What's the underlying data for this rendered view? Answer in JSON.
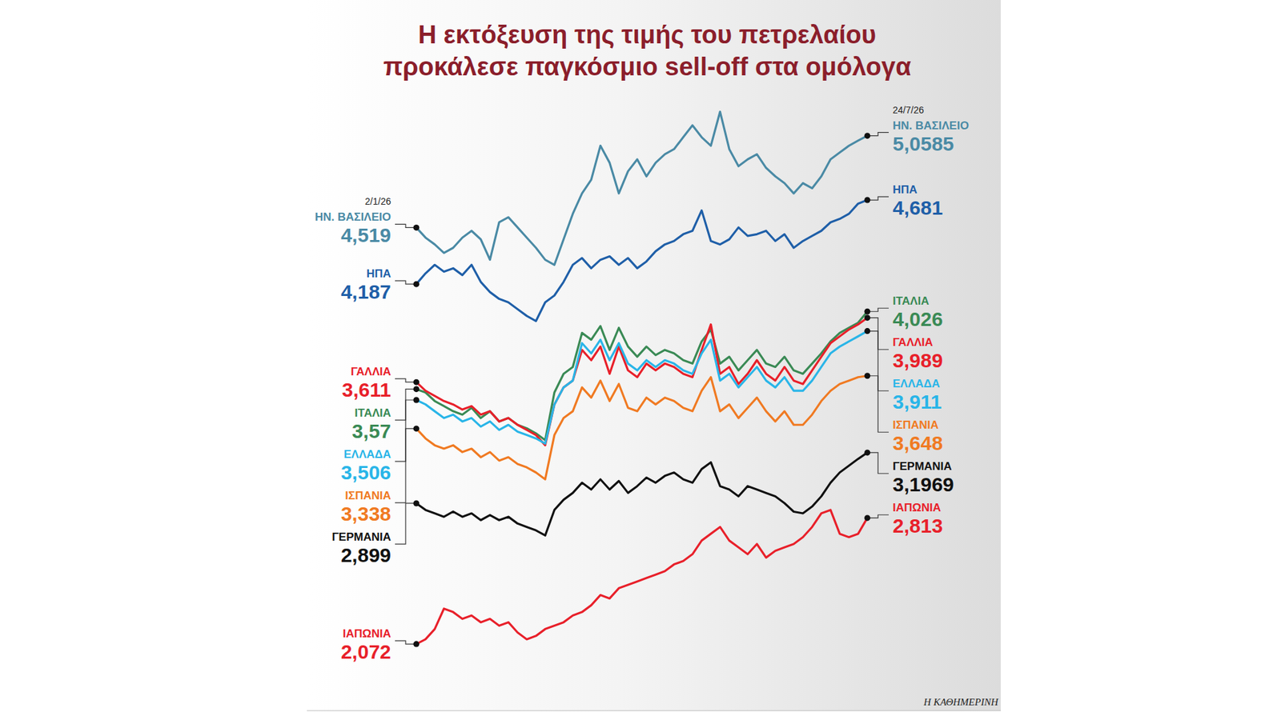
{
  "chart_data": {
    "type": "line",
    "title": "Η εκτόξευση της τιμής του πετρελαίου προκάλεσε παγκόσμιο sell-off στα ομόλογα",
    "source": "Η ΚΑΘΗΜΕΡΙΝΗ",
    "ylim": [
      1.9,
      5.3
    ],
    "tick_labels": false,
    "grid": false,
    "categories": [
      "2/1/26",
      null,
      null,
      null,
      null,
      null,
      null,
      null,
      null,
      null,
      null,
      null,
      null,
      null,
      null,
      null,
      null,
      null,
      null,
      null,
      null,
      null,
      null,
      null,
      null,
      null,
      null,
      null,
      null,
      null,
      null,
      null,
      null,
      null,
      null,
      null,
      null,
      null,
      null,
      null,
      null,
      null,
      null,
      null,
      null,
      null,
      null,
      null,
      null,
      "24/7/26"
    ],
    "series": [
      {
        "name": "ΗΝ. ΒΑΣΙΛΕΙΟ",
        "color": "#4a8aa5",
        "values": [
          4.519,
          4.46,
          4.42,
          4.37,
          4.4,
          4.46,
          4.5,
          4.45,
          4.33,
          4.55,
          4.58,
          4.52,
          4.46,
          4.4,
          4.33,
          4.3,
          4.45,
          4.6,
          4.72,
          4.8,
          5.0,
          4.9,
          4.72,
          4.85,
          4.92,
          4.82,
          4.9,
          4.95,
          4.98,
          5.05,
          5.12,
          5.05,
          5.0,
          5.2,
          4.98,
          4.88,
          4.92,
          4.95,
          4.87,
          4.82,
          4.78,
          4.72,
          4.78,
          4.75,
          4.82,
          4.92,
          4.96,
          5.0,
          5.03,
          5.0585
        ],
        "value_labels": [
          "4,519",
          null,
          null,
          null,
          null,
          null,
          null,
          null,
          null,
          null,
          null,
          null,
          null,
          null,
          null,
          null,
          null,
          null,
          null,
          null,
          null,
          null,
          null,
          null,
          null,
          null,
          null,
          null,
          null,
          null,
          null,
          null,
          null,
          null,
          null,
          null,
          null,
          null,
          null,
          null,
          null,
          null,
          null,
          null,
          null,
          null,
          null,
          null,
          null,
          "5,0585"
        ]
      },
      {
        "name": "ΗΠΑ",
        "color": "#1f5fa8",
        "values": [
          4.187,
          4.25,
          4.3,
          4.26,
          4.28,
          4.24,
          4.3,
          4.2,
          4.14,
          4.1,
          4.08,
          4.04,
          4.0,
          3.97,
          4.08,
          4.12,
          4.2,
          4.3,
          4.34,
          4.28,
          4.33,
          4.35,
          4.3,
          4.34,
          4.28,
          4.32,
          4.38,
          4.42,
          4.44,
          4.48,
          4.5,
          4.62,
          4.44,
          4.42,
          4.45,
          4.52,
          4.47,
          4.48,
          4.5,
          4.44,
          4.48,
          4.4,
          4.44,
          4.47,
          4.5,
          4.55,
          4.57,
          4.6,
          4.66,
          4.681
        ],
        "value_labels": [
          "4,187",
          null,
          null,
          null,
          null,
          null,
          null,
          null,
          null,
          null,
          null,
          null,
          null,
          null,
          null,
          null,
          null,
          null,
          null,
          null,
          null,
          null,
          null,
          null,
          null,
          null,
          null,
          null,
          null,
          null,
          null,
          null,
          null,
          null,
          null,
          null,
          null,
          null,
          null,
          null,
          null,
          null,
          null,
          null,
          null,
          null,
          null,
          null,
          null,
          "4,681"
        ]
      },
      {
        "name": "ΙΤΑΛΙΑ",
        "color": "#3a8a55",
        "values": [
          3.57,
          3.55,
          3.5,
          3.47,
          3.44,
          3.42,
          3.46,
          3.4,
          3.44,
          3.38,
          3.4,
          3.36,
          3.34,
          3.31,
          3.27,
          3.55,
          3.66,
          3.7,
          3.9,
          3.86,
          3.94,
          3.8,
          3.93,
          3.82,
          3.76,
          3.82,
          3.77,
          3.8,
          3.78,
          3.74,
          3.72,
          3.85,
          3.92,
          3.72,
          3.76,
          3.68,
          3.74,
          3.8,
          3.72,
          3.7,
          3.76,
          3.68,
          3.66,
          3.72,
          3.78,
          3.85,
          3.9,
          3.93,
          3.96,
          4.026
        ],
        "value_labels": [
          "3,57",
          null,
          null,
          null,
          null,
          null,
          null,
          null,
          null,
          null,
          null,
          null,
          null,
          null,
          null,
          null,
          null,
          null,
          null,
          null,
          null,
          null,
          null,
          null,
          null,
          null,
          null,
          null,
          null,
          null,
          null,
          null,
          null,
          null,
          null,
          null,
          null,
          null,
          null,
          null,
          null,
          null,
          null,
          null,
          null,
          null,
          null,
          null,
          null,
          "4,026"
        ]
      },
      {
        "name": "ΓΑΛΛΙΑ",
        "color": "#e8202a",
        "values": [
          3.611,
          3.56,
          3.53,
          3.5,
          3.48,
          3.45,
          3.47,
          3.42,
          3.44,
          3.38,
          3.4,
          3.36,
          3.33,
          3.3,
          3.24,
          3.48,
          3.58,
          3.62,
          3.8,
          3.74,
          3.82,
          3.66,
          3.82,
          3.68,
          3.64,
          3.72,
          3.68,
          3.72,
          3.7,
          3.66,
          3.64,
          3.8,
          3.95,
          3.66,
          3.7,
          3.6,
          3.66,
          3.74,
          3.66,
          3.62,
          3.7,
          3.62,
          3.6,
          3.68,
          3.76,
          3.84,
          3.88,
          3.92,
          3.95,
          3.989
        ],
        "value_labels": [
          "3,611",
          null,
          null,
          null,
          null,
          null,
          null,
          null,
          null,
          null,
          null,
          null,
          null,
          null,
          null,
          null,
          null,
          null,
          null,
          null,
          null,
          null,
          null,
          null,
          null,
          null,
          null,
          null,
          null,
          null,
          null,
          null,
          null,
          null,
          null,
          null,
          null,
          null,
          null,
          null,
          null,
          null,
          null,
          null,
          null,
          null,
          null,
          null,
          null,
          "3,989"
        ]
      },
      {
        "name": "ΕΛΛΑΔΑ",
        "color": "#29b5e8",
        "values": [
          3.506,
          3.48,
          3.44,
          3.4,
          3.42,
          3.38,
          3.4,
          3.35,
          3.38,
          3.33,
          3.36,
          3.32,
          3.3,
          3.28,
          3.25,
          3.48,
          3.58,
          3.62,
          3.84,
          3.78,
          3.86,
          3.74,
          3.84,
          3.72,
          3.68,
          3.74,
          3.7,
          3.74,
          3.72,
          3.68,
          3.66,
          3.78,
          3.86,
          3.62,
          3.66,
          3.58,
          3.64,
          3.7,
          3.62,
          3.58,
          3.64,
          3.56,
          3.56,
          3.62,
          3.7,
          3.78,
          3.82,
          3.85,
          3.88,
          3.911
        ],
        "value_labels": [
          "3,506",
          null,
          null,
          null,
          null,
          null,
          null,
          null,
          null,
          null,
          null,
          null,
          null,
          null,
          null,
          null,
          null,
          null,
          null,
          null,
          null,
          null,
          null,
          null,
          null,
          null,
          null,
          null,
          null,
          null,
          null,
          null,
          null,
          null,
          null,
          null,
          null,
          null,
          null,
          null,
          null,
          null,
          null,
          null,
          null,
          null,
          null,
          null,
          null,
          "3,911"
        ]
      },
      {
        "name": "ΙΣΠΑΝΙΑ",
        "color": "#f07a22",
        "values": [
          3.338,
          3.28,
          3.24,
          3.22,
          3.24,
          3.2,
          3.22,
          3.17,
          3.2,
          3.15,
          3.17,
          3.13,
          3.11,
          3.08,
          3.04,
          3.3,
          3.4,
          3.44,
          3.58,
          3.52,
          3.62,
          3.5,
          3.6,
          3.46,
          3.44,
          3.52,
          3.48,
          3.52,
          3.5,
          3.46,
          3.44,
          3.56,
          3.64,
          3.44,
          3.48,
          3.4,
          3.46,
          3.52,
          3.44,
          3.38,
          3.44,
          3.36,
          3.36,
          3.42,
          3.5,
          3.56,
          3.6,
          3.62,
          3.64,
          3.648
        ],
        "value_labels": [
          "3,338",
          null,
          null,
          null,
          null,
          null,
          null,
          null,
          null,
          null,
          null,
          null,
          null,
          null,
          null,
          null,
          null,
          null,
          null,
          null,
          null,
          null,
          null,
          null,
          null,
          null,
          null,
          null,
          null,
          null,
          null,
          null,
          null,
          null,
          null,
          null,
          null,
          null,
          null,
          null,
          null,
          null,
          null,
          null,
          null,
          null,
          null,
          null,
          null,
          "3,648"
        ]
      },
      {
        "name": "ΓΕΡΜΑΝΙΑ",
        "color": "#111111",
        "values": [
          2.899,
          2.86,
          2.84,
          2.82,
          2.85,
          2.82,
          2.84,
          2.8,
          2.83,
          2.8,
          2.82,
          2.78,
          2.76,
          2.74,
          2.71,
          2.86,
          2.92,
          2.96,
          3.02,
          2.98,
          3.04,
          2.98,
          3.03,
          2.96,
          3.0,
          3.05,
          3.02,
          3.06,
          3.08,
          3.04,
          3.02,
          3.1,
          3.14,
          3.0,
          2.98,
          2.94,
          3.0,
          2.98,
          2.96,
          2.94,
          2.9,
          2.85,
          2.84,
          2.88,
          2.94,
          3.02,
          3.08,
          3.12,
          3.16,
          3.1969
        ],
        "value_labels": [
          "2,899",
          null,
          null,
          null,
          null,
          null,
          null,
          null,
          null,
          null,
          null,
          null,
          null,
          null,
          null,
          null,
          null,
          null,
          null,
          null,
          null,
          null,
          null,
          null,
          null,
          null,
          null,
          null,
          null,
          null,
          null,
          null,
          null,
          null,
          null,
          null,
          null,
          null,
          null,
          null,
          null,
          null,
          null,
          null,
          null,
          null,
          null,
          null,
          null,
          "3,1969"
        ]
      },
      {
        "name": "ΙΑΠΩΝΙΑ",
        "color": "#e8202a",
        "values": [
          2.072,
          2.1,
          2.16,
          2.28,
          2.26,
          2.22,
          2.24,
          2.2,
          2.22,
          2.18,
          2.2,
          2.14,
          2.1,
          2.12,
          2.16,
          2.18,
          2.2,
          2.24,
          2.26,
          2.3,
          2.36,
          2.34,
          2.4,
          2.42,
          2.44,
          2.46,
          2.48,
          2.5,
          2.54,
          2.56,
          2.6,
          2.68,
          2.72,
          2.76,
          2.68,
          2.64,
          2.6,
          2.66,
          2.58,
          2.62,
          2.64,
          2.66,
          2.7,
          2.76,
          2.84,
          2.86,
          2.72,
          2.7,
          2.72,
          2.813
        ],
        "value_labels": [
          "2,072",
          null,
          null,
          null,
          null,
          null,
          null,
          null,
          null,
          null,
          null,
          null,
          null,
          null,
          null,
          null,
          null,
          null,
          null,
          null,
          null,
          null,
          null,
          null,
          null,
          null,
          null,
          null,
          null,
          null,
          null,
          null,
          null,
          null,
          null,
          null,
          null,
          null,
          null,
          null,
          null,
          null,
          null,
          null,
          null,
          null,
          null,
          null,
          null,
          "2,813"
        ]
      }
    ]
  }
}
